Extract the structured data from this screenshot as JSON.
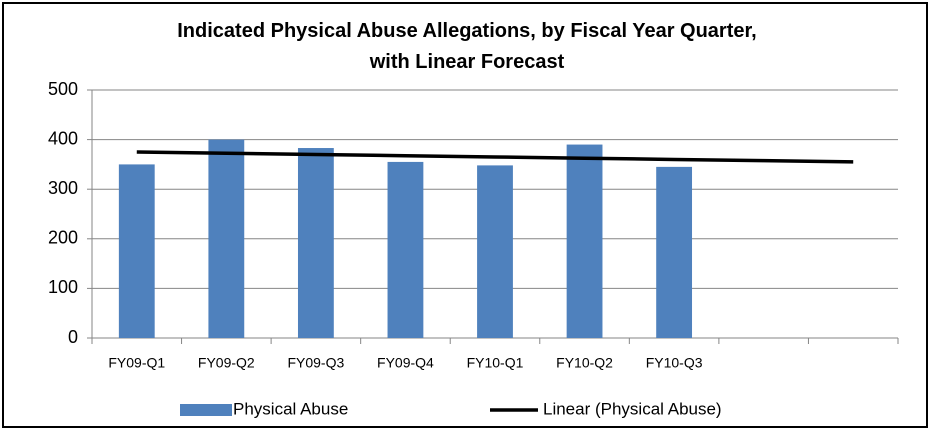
{
  "chart_data": {
    "type": "bar",
    "title": "Indicated Physical Abuse Allegations, by Fiscal Year Quarter, with Linear Forecast",
    "categories": [
      "FY09-Q1",
      "FY09-Q2",
      "FY09-Q3",
      "FY09-Q4",
      "FY10-Q1",
      "FY10-Q2",
      "FY10-Q3",
      null,
      null
    ],
    "series": [
      {
        "name": "Physical Abuse",
        "type": "bar",
        "color": "#4f81bd",
        "values": [
          350,
          400,
          383,
          355,
          348,
          390,
          345,
          null,
          null
        ]
      },
      {
        "name": "Linear (Physical Abuse)",
        "type": "line",
        "color": "#000000",
        "values": [
          375,
          372.5,
          370,
          367.5,
          365,
          362.5,
          360,
          357.5,
          355
        ]
      }
    ],
    "ylim": [
      0,
      500
    ],
    "yticks": [
      0,
      100,
      200,
      300,
      400,
      500
    ],
    "grid": true,
    "legend": "bottom"
  }
}
